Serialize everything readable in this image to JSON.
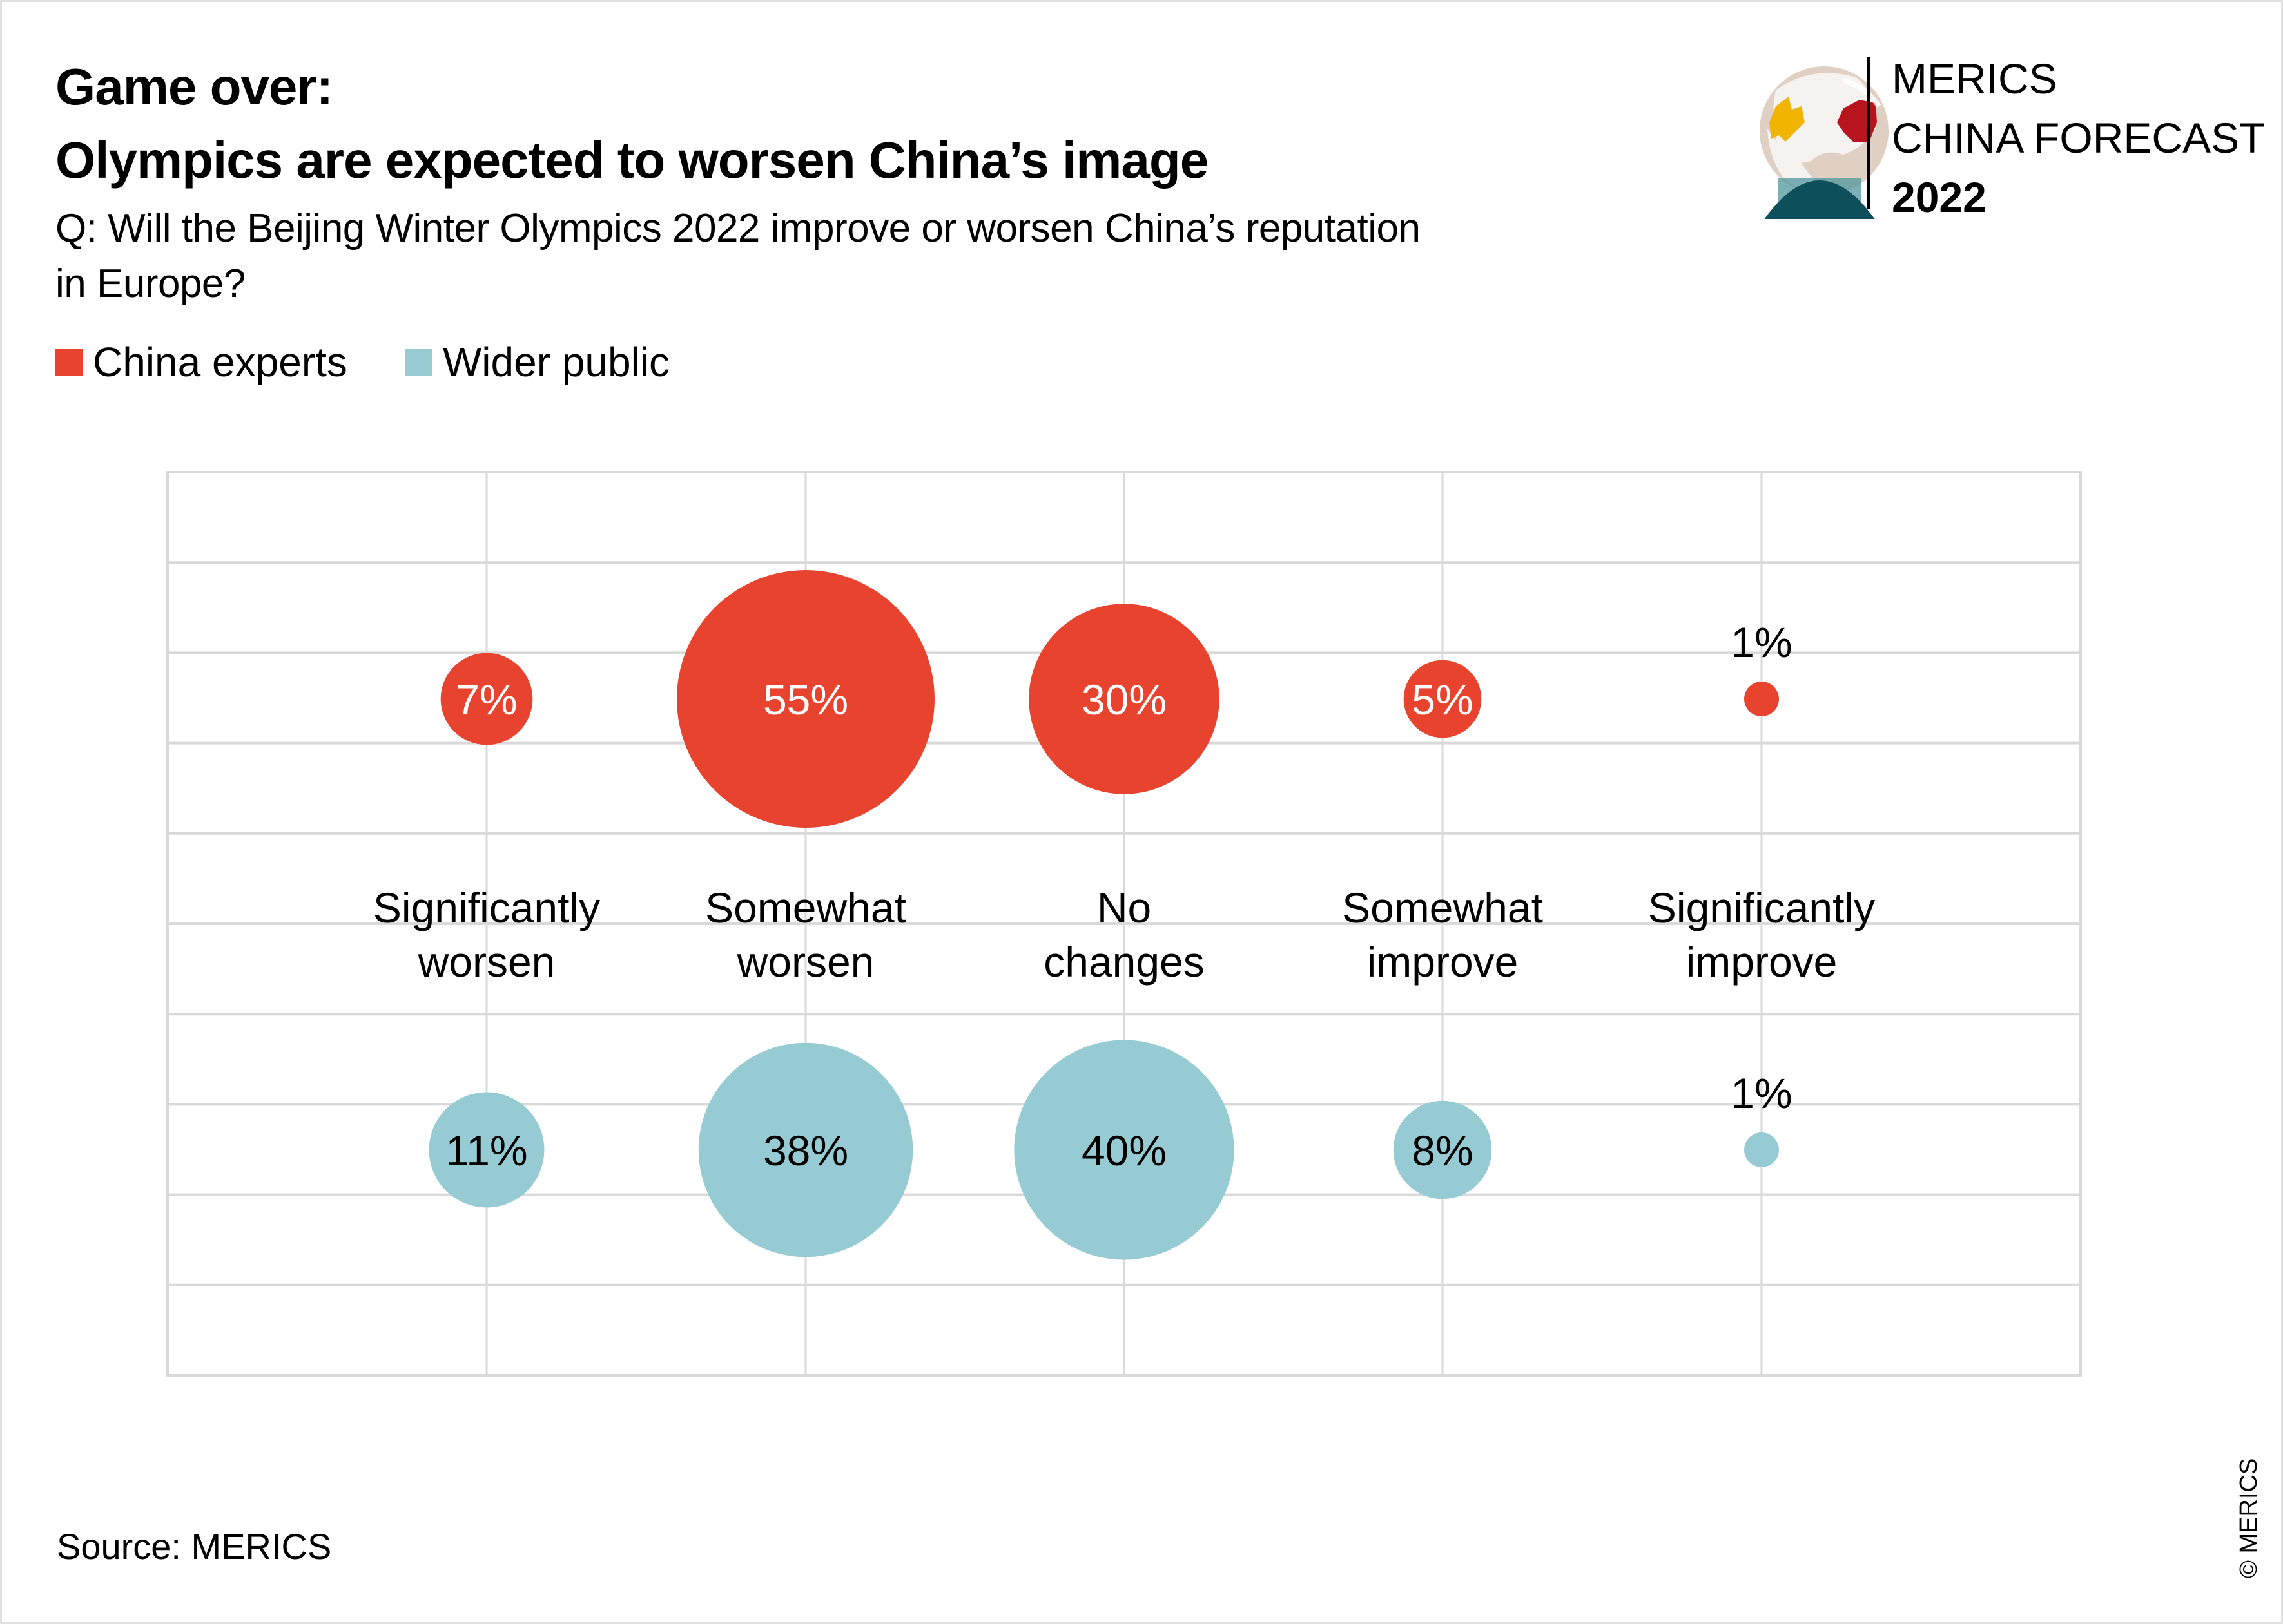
{
  "header": {
    "title_line1": "Game over:",
    "title_line2": "Olympics are expected to worsen China’s image",
    "question": "Q: Will the Beijing Winter Olympics 2022 improve or worsen China’s reputation in Europe?"
  },
  "legend": [
    {
      "label": "China experts",
      "color": "#e8432e"
    },
    {
      "label": "Wider public",
      "color": "#97cbd3"
    }
  ],
  "logo": {
    "line1": "MERICS",
    "line2": "CHINA FORECAST",
    "year": "2022",
    "icon": "crystal-globe-icon"
  },
  "footer": {
    "source": "Source: MERICS",
    "copyright": "© MERICS"
  },
  "chart_data": {
    "type": "bubble",
    "title": "Game over: Olympics are expected to worsen China’s image",
    "subtitle": "Q: Will the Beijing Winter Olympics 2022 improve or worsen China’s reputation in Europe?",
    "categories": [
      [
        "Significantly",
        "worsen"
      ],
      [
        "Somewhat",
        "worsen"
      ],
      [
        "No",
        "changes"
      ],
      [
        "Somewhat",
        "improve"
      ],
      [
        "Significantly",
        "improve"
      ]
    ],
    "unit": "%",
    "grid": true,
    "legend_position": "top-left",
    "series": [
      {
        "name": "China experts",
        "color": "#e8432e",
        "label_color": "#ffffff",
        "values": [
          7,
          55,
          30,
          5,
          1
        ]
      },
      {
        "name": "Wider public",
        "color": "#97cbd3",
        "label_color": "#000000",
        "values": [
          11,
          38,
          40,
          8,
          1
        ]
      }
    ],
    "small_value_label_outside_threshold": 2
  }
}
